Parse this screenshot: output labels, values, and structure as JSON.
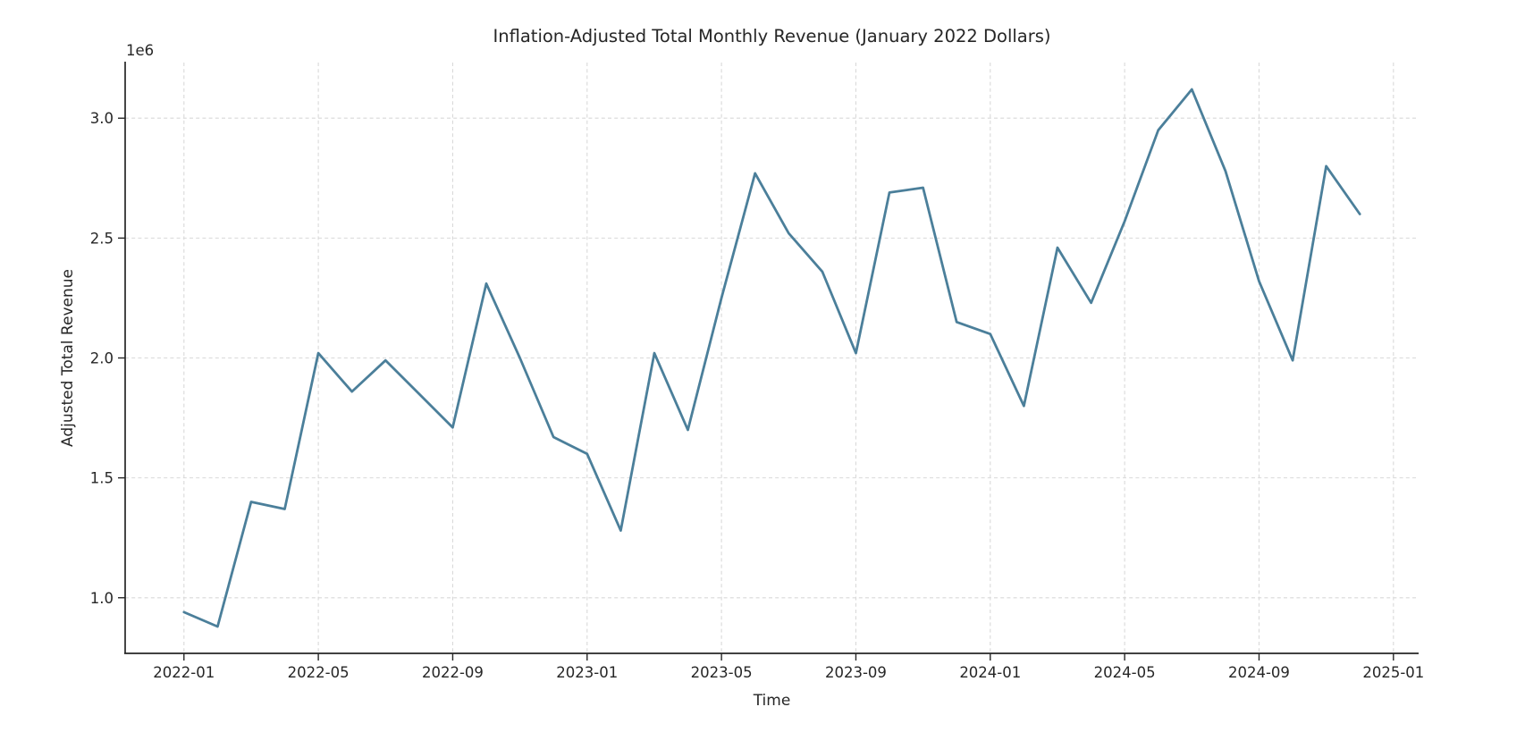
{
  "chart_data": {
    "type": "line",
    "title": "Inflation-Adjusted Total Monthly Revenue (January 2022 Dollars)",
    "xlabel": "Time",
    "ylabel": "Adjusted Total Revenue",
    "y_offset_label": "1e6",
    "x": [
      "2022-01",
      "2022-02",
      "2022-03",
      "2022-04",
      "2022-05",
      "2022-06",
      "2022-07",
      "2022-08",
      "2022-09",
      "2022-10",
      "2022-11",
      "2022-12",
      "2023-01",
      "2023-02",
      "2023-03",
      "2023-04",
      "2023-05",
      "2023-06",
      "2023-07",
      "2023-08",
      "2023-09",
      "2023-10",
      "2023-11",
      "2023-12",
      "2024-01",
      "2024-02",
      "2024-03",
      "2024-04",
      "2024-05",
      "2024-06",
      "2024-07",
      "2024-08",
      "2024-09",
      "2024-10",
      "2024-11",
      "2024-12"
    ],
    "series": [
      {
        "name": "Adjusted Total Revenue",
        "values": [
          0.94,
          0.88,
          1.4,
          1.37,
          2.02,
          1.86,
          1.99,
          1.85,
          1.71,
          2.31,
          2.0,
          1.67,
          1.6,
          1.28,
          2.02,
          1.7,
          2.25,
          2.77,
          2.52,
          2.36,
          2.02,
          2.69,
          2.71,
          2.15,
          2.1,
          1.8,
          2.46,
          2.23,
          2.57,
          2.95,
          3.12,
          2.78,
          2.32,
          1.99,
          2.8,
          2.6
        ]
      }
    ],
    "value_scale_note": "values in units of 1e6 as labeled by axis offset",
    "x_tick_labels": [
      "2022-01",
      "2022-05",
      "2022-09",
      "2023-01",
      "2023-05",
      "2023-09",
      "2024-01",
      "2024-05",
      "2024-09",
      "2025-01"
    ],
    "x_tick_positions": [
      0,
      4,
      8,
      12,
      16,
      20,
      24,
      28,
      32,
      36
    ],
    "y_tick_labels": [
      "1.0",
      "1.5",
      "2.0",
      "2.5",
      "3.0"
    ],
    "y_tick_values": [
      1.0,
      1.5,
      2.0,
      2.5,
      3.0
    ],
    "xlim": [
      -1.75,
      36.75
    ],
    "ylim": [
      0.768,
      3.232
    ],
    "grid": true,
    "legend": "none",
    "colors": {
      "line": "#4b7f9a",
      "grid": "#d9d9d9",
      "axis": "#262626",
      "text": "#262626"
    }
  }
}
